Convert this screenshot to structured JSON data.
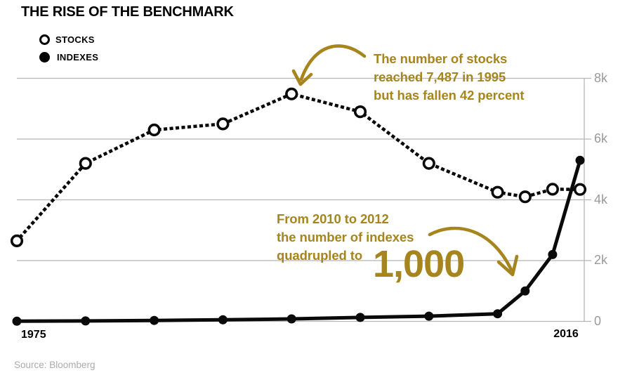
{
  "title": "THE RISE OF THE BENCHMARK",
  "legend": [
    {
      "label": "STOCKS",
      "marker": "open-circle"
    },
    {
      "label": "INDEXES",
      "marker": "filled-circle"
    }
  ],
  "annotations": {
    "stocks": {
      "lines": [
        "The number of stocks",
        "reached 7,487 in 1995",
        "but has fallen 42 percent"
      ]
    },
    "indexes": {
      "lines": [
        "From 2010 to 2012",
        "the number of indexes",
        "quadrupled to"
      ],
      "big_value": "1,000"
    }
  },
  "source": "Source: Bloomberg",
  "colors": {
    "gold": "#A6851F",
    "grid": "#B5B5B5",
    "axis_label": "#9A9A9A",
    "ink": "#0A0A0A"
  },
  "chart_data": {
    "type": "line",
    "x": [
      1975,
      1980,
      1985,
      1990,
      1995,
      2000,
      2005,
      2010,
      2012,
      2014,
      2016
    ],
    "series": [
      {
        "name": "STOCKS",
        "key": "stocks",
        "style": "dotted-open-circles",
        "values": [
          2650,
          5200,
          6300,
          6500,
          7487,
          6900,
          5200,
          4250,
          4100,
          4350,
          4342
        ]
      },
      {
        "name": "INDEXES",
        "key": "indexes",
        "style": "solid-filled-circles",
        "values": [
          5,
          15,
          30,
          50,
          80,
          130,
          170,
          250,
          1000,
          2200,
          5300
        ]
      }
    ],
    "xlim": [
      1975,
      2016
    ],
    "ylim": [
      0,
      8000
    ],
    "x_tick_labels": [
      "1975",
      "2016"
    ],
    "y_ticks": [
      {
        "label": "0",
        "value": 0
      },
      {
        "label": "2k",
        "value": 2000
      },
      {
        "label": "4k",
        "value": 4000
      },
      {
        "label": "6k",
        "value": 6000
      },
      {
        "label": "8k",
        "value": 8000
      }
    ],
    "grid": "horizontal",
    "legend_position": "top-left",
    "highlights": [
      "stocks peak 7,487 in 1995, down 42 percent by 2016",
      "indexes quadrupled to 1,000 between 2010 and 2012"
    ]
  }
}
